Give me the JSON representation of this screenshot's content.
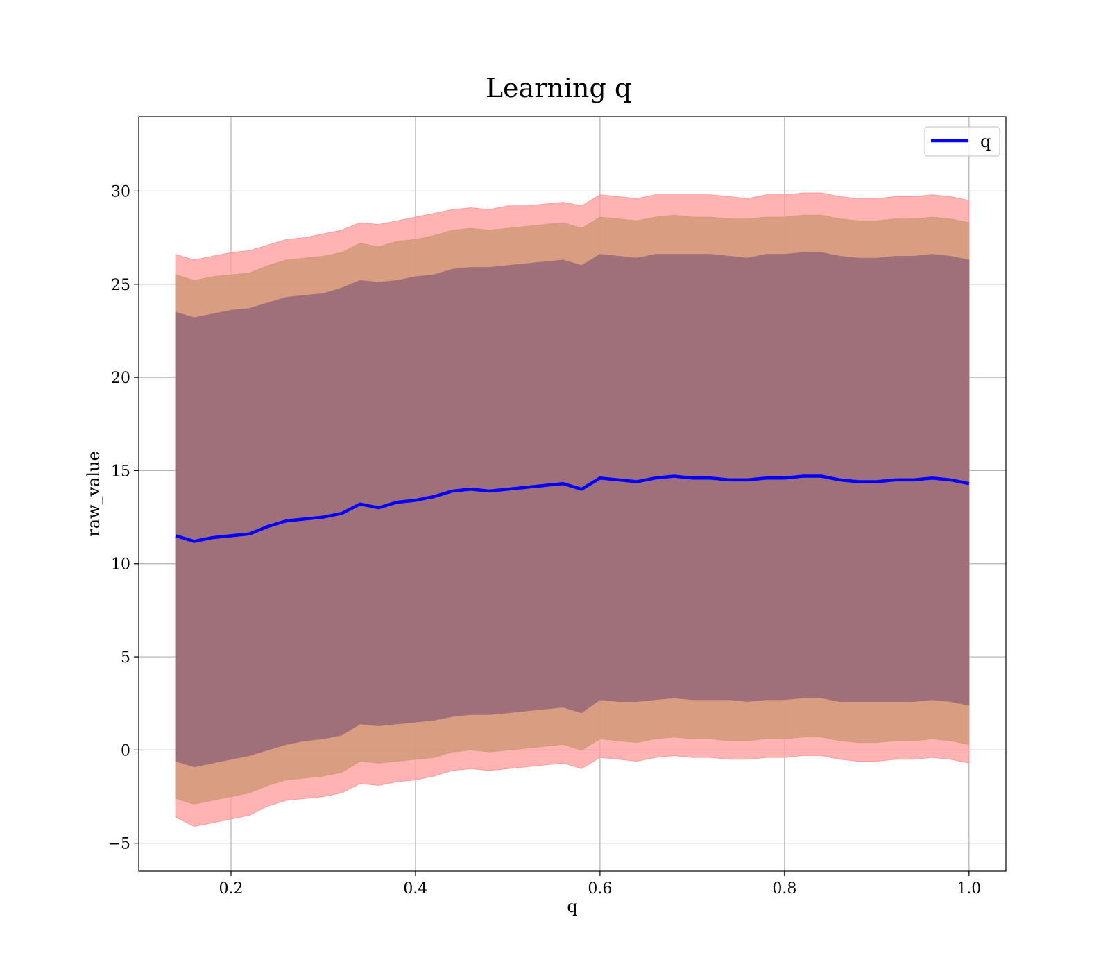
{
  "chart_data": {
    "type": "line",
    "title": "Learning q",
    "xlabel": "q",
    "ylabel": "raw_value",
    "xlim": [
      0.1,
      1.04
    ],
    "ylim": [
      -6.5,
      34
    ],
    "x_ticks": [
      0.2,
      0.4,
      0.6,
      0.8,
      1.0
    ],
    "x_tick_labels": [
      "0.2",
      "0.4",
      "0.6",
      "0.8",
      "1.0"
    ],
    "y_ticks": [
      -5,
      0,
      5,
      10,
      15,
      20,
      25,
      30
    ],
    "y_tick_labels": [
      "−5",
      "0",
      "5",
      "10",
      "15",
      "20",
      "25",
      "30"
    ],
    "grid": true,
    "legend": {
      "position": "top-right",
      "entries": [
        {
          "label": "q",
          "color": "#0000ff"
        }
      ]
    },
    "series": [
      {
        "name": "q",
        "color": "#0000ff",
        "x": [
          0.14,
          0.16,
          0.18,
          0.2,
          0.22,
          0.24,
          0.26,
          0.28,
          0.3,
          0.32,
          0.34,
          0.36,
          0.38,
          0.4,
          0.42,
          0.44,
          0.46,
          0.48,
          0.5,
          0.52,
          0.54,
          0.56,
          0.58,
          0.6,
          0.62,
          0.64,
          0.66,
          0.68,
          0.7,
          0.72,
          0.74,
          0.76,
          0.78,
          0.8,
          0.82,
          0.84,
          0.86,
          0.88,
          0.9,
          0.92,
          0.94,
          0.96,
          0.98,
          1.0
        ],
        "values": [
          11.5,
          11.2,
          11.4,
          11.5,
          11.6,
          12.0,
          12.3,
          12.4,
          12.5,
          12.7,
          13.2,
          13.0,
          13.3,
          13.4,
          13.6,
          13.9,
          14.0,
          13.9,
          14.0,
          14.1,
          14.2,
          14.3,
          14.0,
          14.6,
          14.5,
          14.4,
          14.6,
          14.7,
          14.6,
          14.6,
          14.5,
          14.5,
          14.6,
          14.6,
          14.7,
          14.7,
          14.5,
          14.4,
          14.4,
          14.5,
          14.5,
          14.6,
          14.5,
          14.3
        ]
      }
    ],
    "bands": [
      {
        "color": "#a0707a",
        "opacity": 1,
        "lower": [
          -0.6,
          -0.9,
          -0.7,
          -0.5,
          -0.3,
          0.0,
          0.3,
          0.5,
          0.6,
          0.8,
          1.4,
          1.3,
          1.4,
          1.5,
          1.6,
          1.8,
          1.9,
          1.9,
          2.0,
          2.1,
          2.2,
          2.3,
          2.0,
          2.7,
          2.6,
          2.6,
          2.7,
          2.8,
          2.7,
          2.7,
          2.7,
          2.6,
          2.7,
          2.7,
          2.8,
          2.8,
          2.6,
          2.6,
          2.6,
          2.6,
          2.6,
          2.7,
          2.6,
          2.4
        ],
        "upper": [
          23.5,
          23.2,
          23.4,
          23.6,
          23.7,
          24.0,
          24.3,
          24.4,
          24.5,
          24.8,
          25.2,
          25.1,
          25.2,
          25.4,
          25.5,
          25.8,
          25.9,
          25.9,
          26.0,
          26.1,
          26.2,
          26.3,
          26.0,
          26.6,
          26.5,
          26.4,
          26.6,
          26.6,
          26.6,
          26.6,
          26.5,
          26.4,
          26.6,
          26.6,
          26.7,
          26.7,
          26.5,
          26.4,
          26.4,
          26.5,
          26.5,
          26.6,
          26.5,
          26.3
        ]
      },
      {
        "color": "#d29a78",
        "opacity": 0.85,
        "lower": [
          -2.6,
          -2.9,
          -2.7,
          -2.5,
          -2.3,
          -1.9,
          -1.6,
          -1.5,
          -1.4,
          -1.2,
          -0.6,
          -0.7,
          -0.6,
          -0.5,
          -0.4,
          -0.1,
          0.0,
          -0.1,
          0.0,
          0.1,
          0.2,
          0.3,
          0.0,
          0.6,
          0.5,
          0.4,
          0.6,
          0.7,
          0.6,
          0.6,
          0.5,
          0.5,
          0.6,
          0.6,
          0.7,
          0.7,
          0.5,
          0.4,
          0.4,
          0.5,
          0.5,
          0.6,
          0.5,
          0.3
        ],
        "upper": [
          25.5,
          25.2,
          25.4,
          25.5,
          25.6,
          26.0,
          26.3,
          26.4,
          26.5,
          26.7,
          27.2,
          27.0,
          27.3,
          27.4,
          27.6,
          27.9,
          28.0,
          27.9,
          28.0,
          28.1,
          28.2,
          28.3,
          28.0,
          28.6,
          28.5,
          28.4,
          28.6,
          28.7,
          28.6,
          28.6,
          28.5,
          28.5,
          28.6,
          28.6,
          28.7,
          28.7,
          28.5,
          28.4,
          28.4,
          28.5,
          28.5,
          28.6,
          28.5,
          28.3
        ]
      },
      {
        "color": "#ff9a9a",
        "opacity": 0.75,
        "lower": [
          -3.6,
          -4.1,
          -3.9,
          -3.7,
          -3.5,
          -3.0,
          -2.7,
          -2.6,
          -2.5,
          -2.3,
          -1.8,
          -1.9,
          -1.7,
          -1.6,
          -1.4,
          -1.1,
          -1.0,
          -1.1,
          -1.0,
          -0.9,
          -0.8,
          -0.7,
          -1.0,
          -0.4,
          -0.5,
          -0.6,
          -0.4,
          -0.3,
          -0.4,
          -0.4,
          -0.5,
          -0.5,
          -0.4,
          -0.4,
          -0.3,
          -0.3,
          -0.5,
          -0.6,
          -0.6,
          -0.5,
          -0.5,
          -0.4,
          -0.5,
          -0.7
        ],
        "upper": [
          26.6,
          26.3,
          26.5,
          26.7,
          26.8,
          27.1,
          27.4,
          27.5,
          27.7,
          27.9,
          28.3,
          28.2,
          28.4,
          28.6,
          28.8,
          29.0,
          29.1,
          29.0,
          29.2,
          29.2,
          29.3,
          29.4,
          29.2,
          29.8,
          29.7,
          29.6,
          29.8,
          29.8,
          29.8,
          29.8,
          29.7,
          29.6,
          29.8,
          29.8,
          29.9,
          29.9,
          29.7,
          29.6,
          29.6,
          29.7,
          29.7,
          29.8,
          29.7,
          29.5
        ]
      }
    ]
  }
}
